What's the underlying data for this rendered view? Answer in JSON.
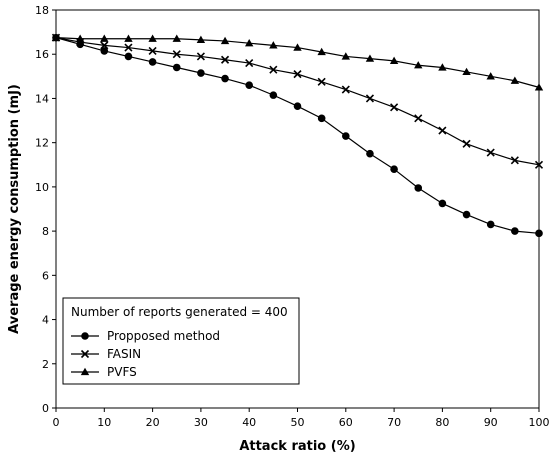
{
  "chart_data": {
    "type": "line",
    "title": "",
    "xlabel": "Attack ratio (%)",
    "ylabel": "Average energy consumption (mJ)",
    "xlim": [
      0,
      100
    ],
    "ylim": [
      0,
      18
    ],
    "xticks": [
      0,
      10,
      20,
      30,
      40,
      50,
      60,
      70,
      80,
      90,
      100
    ],
    "yticks": [
      0,
      2,
      4,
      6,
      8,
      10,
      12,
      14,
      16,
      18
    ],
    "grid": false,
    "legend_title": "Number of reports generated = 400",
    "legend_position": "bottom-left",
    "x": [
      0,
      5,
      10,
      15,
      20,
      25,
      30,
      35,
      40,
      45,
      50,
      55,
      60,
      65,
      70,
      75,
      80,
      85,
      90,
      95,
      100
    ],
    "series": [
      {
        "name": "Propposed method",
        "marker": "circle",
        "values": [
          16.75,
          16.45,
          16.15,
          15.9,
          15.65,
          15.4,
          15.15,
          14.9,
          14.6,
          14.15,
          13.65,
          13.1,
          12.3,
          11.5,
          10.8,
          9.95,
          9.25,
          8.75,
          8.3,
          8.0,
          7.9
        ]
      },
      {
        "name": "FASIN",
        "marker": "x",
        "values": [
          16.75,
          16.55,
          16.4,
          16.3,
          16.15,
          16.0,
          15.9,
          15.75,
          15.6,
          15.3,
          15.1,
          14.75,
          14.4,
          14.0,
          13.6,
          13.1,
          12.55,
          11.95,
          11.55,
          11.2,
          11.0
        ]
      },
      {
        "name": "PVFS",
        "marker": "triangle",
        "values": [
          16.75,
          16.7,
          16.7,
          16.7,
          16.7,
          16.7,
          16.65,
          16.6,
          16.5,
          16.4,
          16.3,
          16.1,
          15.9,
          15.8,
          15.7,
          15.5,
          15.4,
          15.2,
          15.0,
          14.8,
          14.5
        ]
      }
    ]
  }
}
